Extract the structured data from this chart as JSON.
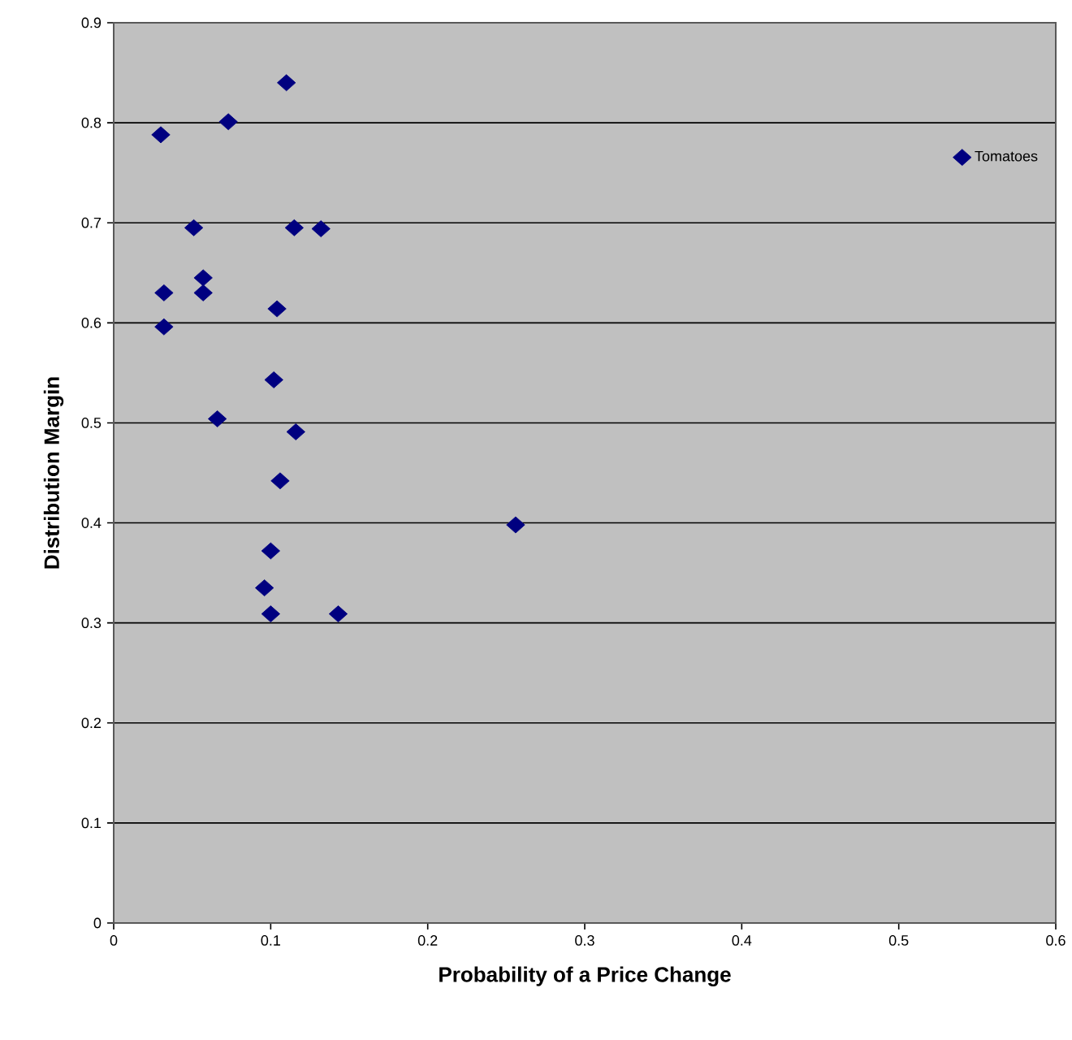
{
  "chart_data": {
    "type": "scatter",
    "xlabel": "Probability of a Price Change",
    "ylabel": "Distribution Margin",
    "xlim": [
      0,
      0.6
    ],
    "ylim": [
      0,
      0.9
    ],
    "xticks": [
      0,
      0.1,
      0.2,
      0.3,
      0.4,
      0.5,
      0.6
    ],
    "yticks": [
      0,
      0.1,
      0.2,
      0.3,
      0.4,
      0.5,
      0.6,
      0.7,
      0.8,
      0.9
    ],
    "grid": "y",
    "legend": "top right",
    "marker": "diamond",
    "series": [
      {
        "name": "Tomatoes",
        "color": "#000080",
        "x": [
          0.03,
          0.073,
          0.11,
          0.051,
          0.115,
          0.132,
          0.057,
          0.057,
          0.032,
          0.104,
          0.032,
          0.102,
          0.066,
          0.116,
          0.106,
          0.256,
          0.1,
          0.096,
          0.1,
          0.143
        ],
        "values": [
          0.788,
          0.801,
          0.84,
          0.695,
          0.695,
          0.694,
          0.645,
          0.63,
          0.63,
          0.614,
          0.596,
          0.543,
          0.504,
          0.491,
          0.442,
          0.398,
          0.372,
          0.335,
          0.309,
          0.309
        ]
      }
    ]
  }
}
